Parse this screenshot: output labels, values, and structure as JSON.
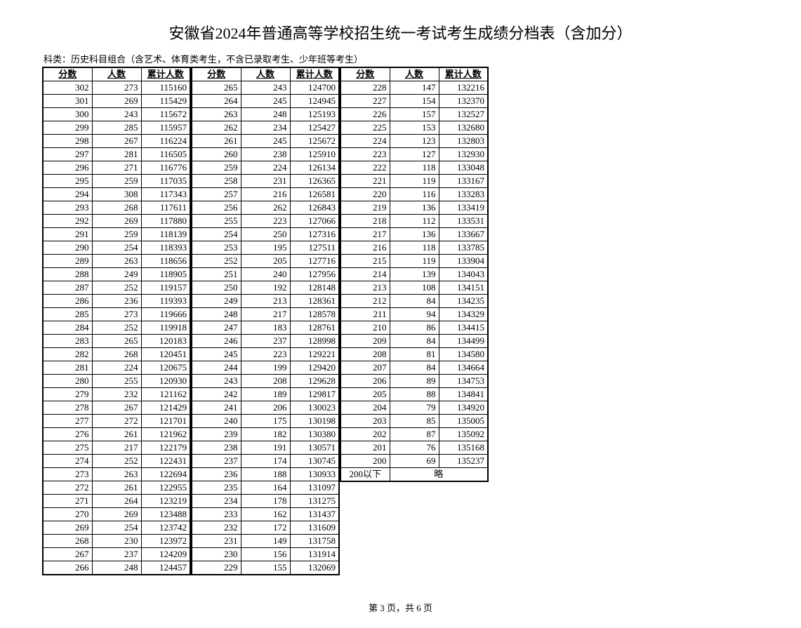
{
  "title": "安徽省2024年普通高等学校招生统一考试考生成绩分档表（含加分）",
  "subtitle": "科类：历史科目组合（含艺术、体育类考生，不含已录取考生、少年班等考生）",
  "footer": "第 3 页，共 6 页",
  "headers": {
    "score": "分数",
    "count": "人数",
    "cum": "累计人数"
  },
  "omit_label": "略",
  "below_label": "200以下",
  "blocks": [
    {
      "rows": [
        [
          302,
          273,
          115160
        ],
        [
          301,
          269,
          115429
        ],
        [
          300,
          243,
          115672
        ],
        [
          299,
          285,
          115957
        ],
        [
          298,
          267,
          116224
        ],
        [
          297,
          281,
          116505
        ],
        [
          296,
          271,
          116776
        ],
        [
          295,
          259,
          117035
        ],
        [
          294,
          308,
          117343
        ],
        [
          293,
          268,
          117611
        ],
        [
          292,
          269,
          117880
        ],
        [
          291,
          259,
          118139
        ],
        [
          290,
          254,
          118393
        ],
        [
          289,
          263,
          118656
        ],
        [
          288,
          249,
          118905
        ],
        [
          287,
          252,
          119157
        ],
        [
          286,
          236,
          119393
        ],
        [
          285,
          273,
          119666
        ],
        [
          284,
          252,
          119918
        ],
        [
          283,
          265,
          120183
        ],
        [
          282,
          268,
          120451
        ],
        [
          281,
          224,
          120675
        ],
        [
          280,
          255,
          120930
        ],
        [
          279,
          232,
          121162
        ],
        [
          278,
          267,
          121429
        ],
        [
          277,
          272,
          121701
        ],
        [
          276,
          261,
          121962
        ],
        [
          275,
          217,
          122179
        ],
        [
          274,
          252,
          122431
        ],
        [
          273,
          263,
          122694
        ],
        [
          272,
          261,
          122955
        ],
        [
          271,
          264,
          123219
        ],
        [
          270,
          269,
          123488
        ],
        [
          269,
          254,
          123742
        ],
        [
          268,
          230,
          123972
        ],
        [
          267,
          237,
          124209
        ],
        [
          266,
          248,
          124457
        ]
      ]
    },
    {
      "rows": [
        [
          265,
          243,
          124700
        ],
        [
          264,
          245,
          124945
        ],
        [
          263,
          248,
          125193
        ],
        [
          262,
          234,
          125427
        ],
        [
          261,
          245,
          125672
        ],
        [
          260,
          238,
          125910
        ],
        [
          259,
          224,
          126134
        ],
        [
          258,
          231,
          126365
        ],
        [
          257,
          216,
          126581
        ],
        [
          256,
          262,
          126843
        ],
        [
          255,
          223,
          127066
        ],
        [
          254,
          250,
          127316
        ],
        [
          253,
          195,
          127511
        ],
        [
          252,
          205,
          127716
        ],
        [
          251,
          240,
          127956
        ],
        [
          250,
          192,
          128148
        ],
        [
          249,
          213,
          128361
        ],
        [
          248,
          217,
          128578
        ],
        [
          247,
          183,
          128761
        ],
        [
          246,
          237,
          128998
        ],
        [
          245,
          223,
          129221
        ],
        [
          244,
          199,
          129420
        ],
        [
          243,
          208,
          129628
        ],
        [
          242,
          189,
          129817
        ],
        [
          241,
          206,
          130023
        ],
        [
          240,
          175,
          130198
        ],
        [
          239,
          182,
          130380
        ],
        [
          238,
          191,
          130571
        ],
        [
          237,
          174,
          130745
        ],
        [
          236,
          188,
          130933
        ],
        [
          235,
          164,
          131097
        ],
        [
          234,
          178,
          131275
        ],
        [
          233,
          162,
          131437
        ],
        [
          232,
          172,
          131609
        ],
        [
          231,
          149,
          131758
        ],
        [
          230,
          156,
          131914
        ],
        [
          229,
          155,
          132069
        ]
      ]
    },
    {
      "rows": [
        [
          228,
          147,
          132216
        ],
        [
          227,
          154,
          132370
        ],
        [
          226,
          157,
          132527
        ],
        [
          225,
          153,
          132680
        ],
        [
          224,
          123,
          132803
        ],
        [
          223,
          127,
          132930
        ],
        [
          222,
          118,
          133048
        ],
        [
          221,
          119,
          133167
        ],
        [
          220,
          116,
          133283
        ],
        [
          219,
          136,
          133419
        ],
        [
          218,
          112,
          133531
        ],
        [
          217,
          136,
          133667
        ],
        [
          216,
          118,
          133785
        ],
        [
          215,
          119,
          133904
        ],
        [
          214,
          139,
          134043
        ],
        [
          213,
          108,
          134151
        ],
        [
          212,
          84,
          134235
        ],
        [
          211,
          94,
          134329
        ],
        [
          210,
          86,
          134415
        ],
        [
          209,
          84,
          134499
        ],
        [
          208,
          81,
          134580
        ],
        [
          207,
          84,
          134664
        ],
        [
          206,
          89,
          134753
        ],
        [
          205,
          88,
          134841
        ],
        [
          204,
          79,
          134920
        ],
        [
          203,
          85,
          135005
        ],
        [
          202,
          87,
          135092
        ],
        [
          201,
          76,
          135168
        ],
        [
          200,
          69,
          135237
        ]
      ],
      "tail": true
    }
  ]
}
